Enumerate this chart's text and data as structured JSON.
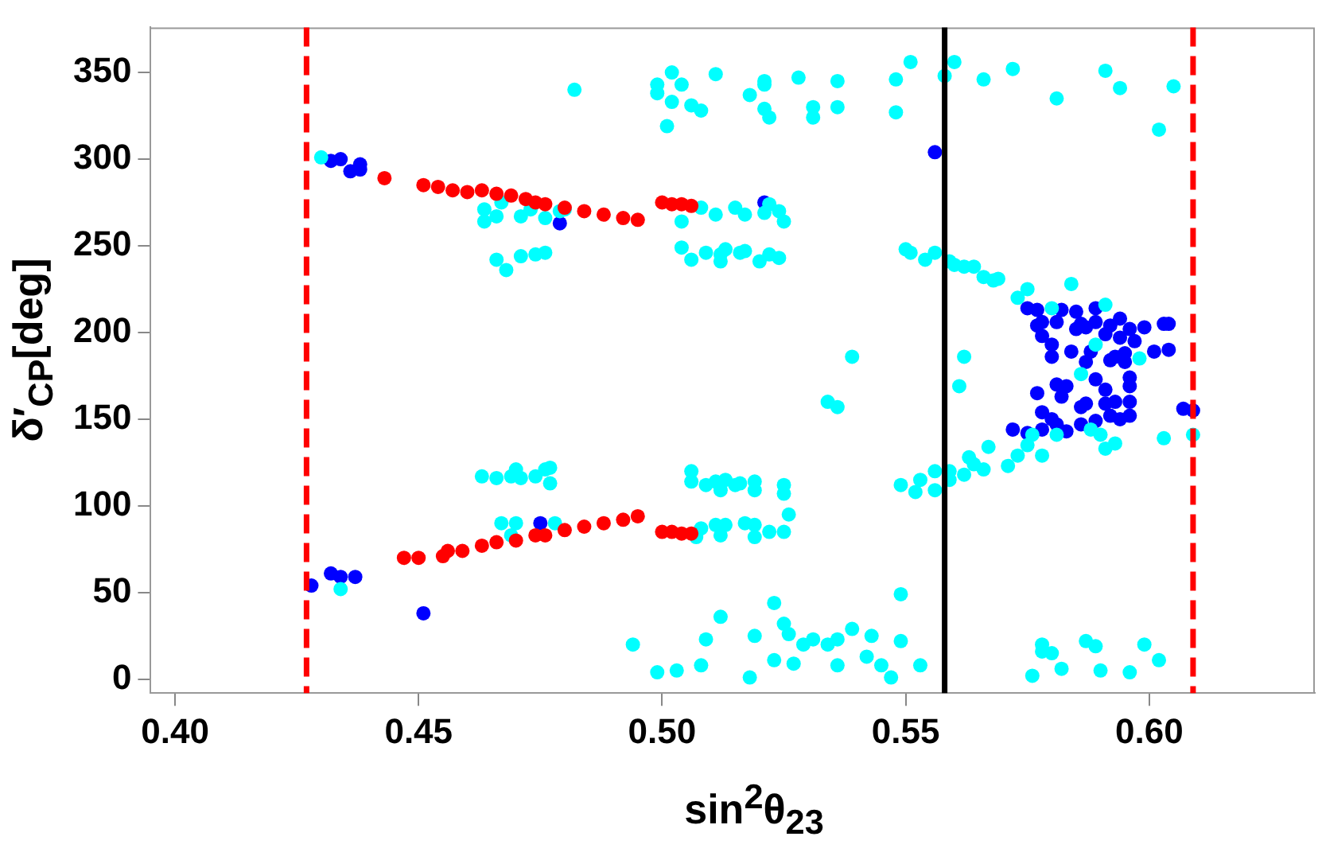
{
  "chart_data": {
    "type": "scatter",
    "xlabel": "sin$^{2}$θ$_{23}$",
    "ylabel": "δ′$_{CP}$[deg]",
    "xlim": [
      0.395,
      0.634
    ],
    "xticks": [
      {
        "value": 0.4,
        "label": "0.40"
      },
      {
        "value": 0.45,
        "label": "0.45"
      },
      {
        "value": 0.5,
        "label": "0.50"
      },
      {
        "value": 0.55,
        "label": "0.55"
      },
      {
        "value": 0.6,
        "label": "0.60"
      }
    ],
    "ylim": [
      -8,
      376
    ],
    "yticks": [
      0,
      50,
      100,
      150,
      200,
      250,
      300,
      350
    ],
    "grid": false,
    "legend": false,
    "marker": "circle",
    "ref_lines": [
      {
        "axis": "x",
        "value": 0.427,
        "color": "#ff0000",
        "line_style": "dashed"
      },
      {
        "axis": "x",
        "value": 0.558,
        "color": "#000000",
        "line_style": "solid"
      },
      {
        "axis": "x",
        "value": 0.609,
        "color": "#ff0000",
        "line_style": "dashed"
      }
    ],
    "series": [
      {
        "color": "#ff0000",
        "x": [
          0.443,
          0.451,
          0.454,
          0.457,
          0.46,
          0.463,
          0.466,
          0.469,
          0.472,
          0.474,
          0.476,
          0.48,
          0.484,
          0.488,
          0.492,
          0.495,
          0.5,
          0.502,
          0.504,
          0.506,
          0.447,
          0.45,
          0.455,
          0.456,
          0.459,
          0.463,
          0.466,
          0.47,
          0.474,
          0.476,
          0.48,
          0.484,
          0.488,
          0.492,
          0.495,
          0.5,
          0.502,
          0.504,
          0.506
        ],
        "values": [
          289,
          285,
          284,
          282,
          281,
          282,
          280,
          279,
          277,
          275,
          274,
          272,
          270,
          268,
          266,
          265,
          275,
          274,
          274,
          273,
          70,
          70,
          71,
          74,
          74,
          77,
          79,
          80,
          83,
          83,
          86,
          88,
          90,
          92,
          94,
          85,
          85,
          84,
          84
        ]
      },
      {
        "color": "#00ffff",
        "x": [
          0.43,
          0.4635,
          0.4635,
          0.466,
          0.467,
          0.471,
          0.473,
          0.476,
          0.479,
          0.48,
          0.504,
          0.508,
          0.511,
          0.515,
          0.517,
          0.522,
          0.521,
          0.524,
          0.525,
          0.466,
          0.468,
          0.471,
          0.474,
          0.476,
          0.504,
          0.506,
          0.509,
          0.512,
          0.513,
          0.516,
          0.517,
          0.52,
          0.522,
          0.524,
          0.512,
          0.55,
          0.551,
          0.554,
          0.556,
          0.56,
          0.562,
          0.559,
          0.564,
          0.566,
          0.568,
          0.569,
          0.575,
          0.573,
          0.584,
          0.58,
          0.591,
          0.589,
          0.598,
          0.586,
          0.562,
          0.561,
          0.482,
          0.499,
          0.499,
          0.502,
          0.504,
          0.502,
          0.501,
          0.506,
          0.508,
          0.511,
          0.518,
          0.521,
          0.521,
          0.521,
          0.522,
          0.528,
          0.531,
          0.531,
          0.536,
          0.536,
          0.548,
          0.548,
          0.551,
          0.558,
          0.56,
          0.566,
          0.572,
          0.581,
          0.591,
          0.594,
          0.605,
          0.602,
          0.581,
          0.576,
          0.575,
          0.588,
          0.59,
          0.591,
          0.593,
          0.603,
          0.609,
          0.578,
          0.573,
          0.571,
          0.567,
          0.563,
          0.564,
          0.566,
          0.562,
          0.559,
          0.559,
          0.549,
          0.553,
          0.552,
          0.556,
          0.556,
          0.539,
          0.536,
          0.534,
          0.506,
          0.506,
          0.509,
          0.511,
          0.512,
          0.513,
          0.515,
          0.516,
          0.519,
          0.519,
          0.525,
          0.525,
          0.507,
          0.508,
          0.511,
          0.512,
          0.513,
          0.517,
          0.519,
          0.519,
          0.522,
          0.525,
          0.526,
          0.477,
          0.477,
          0.478,
          0.434,
          0.463,
          0.466,
          0.469,
          0.47,
          0.471,
          0.474,
          0.476,
          0.467,
          0.47,
          0.469,
          0.494,
          0.499,
          0.503,
          0.508,
          0.509,
          0.512,
          0.519,
          0.518,
          0.523,
          0.523,
          0.525,
          0.526,
          0.527,
          0.529,
          0.531,
          0.534,
          0.536,
          0.536,
          0.539,
          0.542,
          0.543,
          0.545,
          0.547,
          0.549,
          0.549,
          0.553,
          0.578,
          0.578,
          0.58,
          0.582,
          0.576,
          0.587,
          0.589,
          0.59,
          0.596,
          0.599,
          0.602
        ],
        "values": [
          301,
          271,
          264,
          267,
          275,
          267,
          271,
          266,
          270,
          271,
          264,
          272,
          268,
          272,
          268,
          274,
          269,
          270,
          264,
          242,
          236,
          244,
          245,
          246,
          249,
          242,
          246,
          245,
          248,
          246,
          247,
          241,
          245,
          243,
          241,
          248,
          246,
          242,
          246,
          239,
          238,
          241,
          238,
          232,
          230,
          231,
          225,
          220,
          228,
          214,
          216,
          193,
          185,
          176,
          186,
          169,
          340,
          343,
          338,
          350,
          343,
          333,
          319,
          331,
          328,
          349,
          337,
          345,
          343,
          329,
          324,
          347,
          330,
          324,
          330,
          345,
          346,
          327,
          356,
          348,
          356,
          346,
          352,
          335,
          351,
          341,
          342,
          317,
          141,
          141,
          135,
          144,
          141,
          133,
          136,
          139,
          141,
          129,
          129,
          123,
          134,
          128,
          124,
          121,
          118,
          120,
          115,
          112,
          115,
          108,
          120,
          109,
          186,
          157,
          160,
          120,
          114,
          112,
          114,
          109,
          115,
          112,
          113,
          109,
          114,
          112,
          107,
          82,
          87,
          89,
          83,
          89,
          90,
          82,
          89,
          85,
          85,
          95,
          122,
          113,
          90,
          52,
          117,
          116,
          117,
          121,
          116,
          117,
          121,
          90,
          90,
          83,
          20,
          4,
          5,
          8,
          23,
          36,
          25,
          1,
          11,
          44,
          32,
          26,
          9,
          20,
          23,
          20,
          23,
          8,
          29,
          13,
          25,
          8,
          1,
          22,
          49,
          8,
          20,
          16,
          15,
          6,
          2,
          22,
          19,
          5,
          4,
          20,
          11
        ]
      },
      {
        "color": "#0000ff",
        "x": [
          0.432,
          0.434,
          0.436,
          0.438,
          0.438,
          0.479,
          0.521,
          0.556,
          0.428,
          0.432,
          0.434,
          0.437,
          0.451,
          0.475,
          0.575,
          0.577,
          0.582,
          0.585,
          0.589,
          0.577,
          0.578,
          0.578,
          0.581,
          0.585,
          0.586,
          0.587,
          0.589,
          0.591,
          0.592,
          0.594,
          0.596,
          0.594,
          0.599,
          0.603,
          0.604,
          0.58,
          0.58,
          0.584,
          0.588,
          0.587,
          0.592,
          0.593,
          0.595,
          0.595,
          0.597,
          0.601,
          0.604,
          0.581,
          0.583,
          0.582,
          0.589,
          0.591,
          0.587,
          0.586,
          0.591,
          0.593,
          0.596,
          0.596,
          0.596,
          0.577,
          0.578,
          0.58,
          0.581,
          0.583,
          0.578,
          0.572,
          0.575,
          0.586,
          0.589,
          0.592,
          0.594,
          0.596,
          0.607,
          0.609
        ],
        "values": [
          299,
          300,
          293,
          297,
          294,
          263,
          275,
          304,
          54,
          61,
          59,
          59,
          38,
          90,
          214,
          213,
          213,
          212,
          214,
          204,
          206,
          198,
          206,
          202,
          205,
          203,
          206,
          199,
          204,
          208,
          202,
          197,
          203,
          205,
          205,
          193,
          186,
          189,
          189,
          183,
          184,
          186,
          183,
          188,
          195,
          189,
          190,
          170,
          169,
          163,
          173,
          167,
          159,
          157,
          159,
          160,
          174,
          169,
          160,
          165,
          154,
          150,
          147,
          143,
          144,
          144,
          142,
          147,
          149,
          152,
          150,
          152,
          156,
          155
        ]
      }
    ]
  }
}
